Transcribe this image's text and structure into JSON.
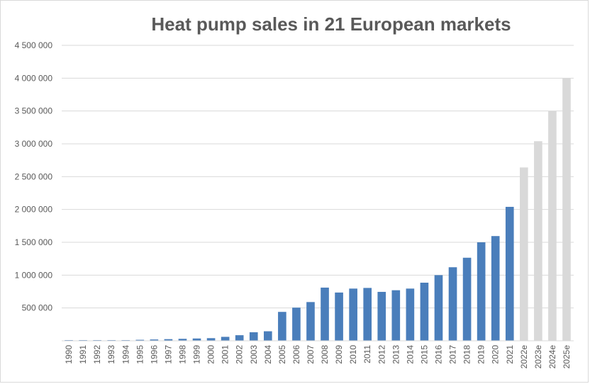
{
  "chart_data": {
    "type": "bar",
    "title": "Heat pump sales in 21 European markets",
    "xlabel": "",
    "ylabel": "",
    "ylim": [
      0,
      4500000
    ],
    "yticks": [
      {
        "value": 500000,
        "label": "500 000"
      },
      {
        "value": 1000000,
        "label": "1 000 000"
      },
      {
        "value": 1500000,
        "label": "1 500 000"
      },
      {
        "value": 2000000,
        "label": "2 000 000"
      },
      {
        "value": 2500000,
        "label": "2 500 000"
      },
      {
        "value": 3000000,
        "label": "3 000 000"
      },
      {
        "value": 3500000,
        "label": "3 500 000"
      },
      {
        "value": 4000000,
        "label": "4 000 000"
      },
      {
        "value": 4500000,
        "label": "4 500 000"
      }
    ],
    "grid": true,
    "legend": "none",
    "categories": [
      "1990",
      "1991",
      "1992",
      "1993",
      "1994",
      "1995",
      "1996",
      "1997",
      "1998",
      "1999",
      "2000",
      "2001",
      "2002",
      "2003",
      "2004",
      "2005",
      "2006",
      "2007",
      "2008",
      "2009",
      "2010",
      "2011",
      "2012",
      "2013",
      "2014",
      "2015",
      "2016",
      "2017",
      "2018",
      "2019",
      "2020",
      "2021",
      "2022e",
      "2023e",
      "2024e",
      "2025e"
    ],
    "values": [
      10000,
      10000,
      10000,
      10000,
      10000,
      15000,
      20000,
      25000,
      30000,
      35000,
      40000,
      60000,
      85000,
      130000,
      145000,
      440000,
      505000,
      590000,
      810000,
      735000,
      795000,
      805000,
      745000,
      770000,
      795000,
      885000,
      1000000,
      1120000,
      1265000,
      1500000,
      1595000,
      2040000,
      2640000,
      3040000,
      3500000,
      4000000
    ],
    "colors": {
      "actual": "#4a7ebb",
      "estimate": "#d9d9d9"
    },
    "estimate_suffix": "e"
  }
}
